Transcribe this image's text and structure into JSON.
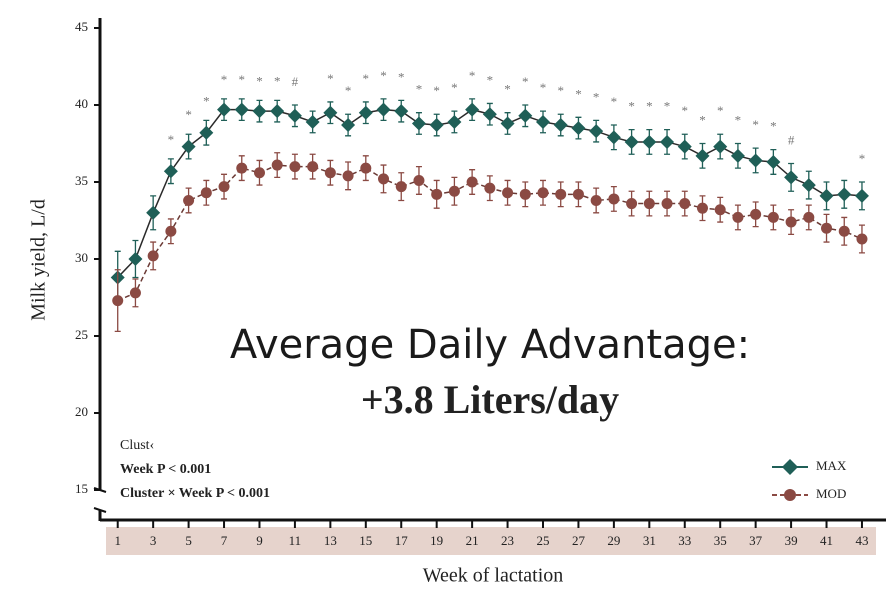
{
  "chart_data": {
    "type": "line",
    "ylabel": "Milk yield, L/d",
    "xlabel": "Week of lactation",
    "headline": "Average Daily Advantage:",
    "subheadline": "+3.8 Liters/day",
    "notes": [
      "Clust‹",
      "Week P < 0.001",
      "Cluster × Week P < 0.001"
    ],
    "xlim": [
      0,
      44.3
    ],
    "ylim": [
      15,
      45
    ],
    "yticks": [
      15,
      20,
      25,
      30,
      35,
      40,
      45
    ],
    "xticks": [
      1,
      3,
      5,
      7,
      9,
      11,
      13,
      15,
      17,
      19,
      21,
      23,
      25,
      27,
      29,
      31,
      33,
      35,
      37,
      39,
      41,
      43
    ],
    "x": [
      1,
      2,
      3,
      4,
      5,
      6,
      7,
      8,
      9,
      10,
      11,
      12,
      13,
      14,
      15,
      16,
      17,
      18,
      19,
      20,
      21,
      22,
      23,
      24,
      25,
      26,
      27,
      28,
      29,
      30,
      31,
      32,
      33,
      34,
      35,
      36,
      37,
      38,
      39,
      40,
      41,
      42,
      43
    ],
    "significance": [
      null,
      null,
      null,
      "*",
      "*",
      "*",
      "*",
      "*",
      "*",
      "*",
      "#",
      null,
      "*",
      "*",
      "*",
      "*",
      "*",
      "*",
      "*",
      "*",
      "*",
      "*",
      "*",
      "*",
      "*",
      "*",
      "*",
      "*",
      "*",
      "*",
      "*",
      "*",
      "*",
      "*",
      "*",
      "*",
      "*",
      "*",
      "#",
      null,
      null,
      null,
      "*"
    ],
    "legend": "lower right",
    "series": [
      {
        "name": "MAX",
        "color": "#1f5f57",
        "marker": "diamond",
        "dashed": false,
        "values": [
          28.8,
          30,
          33,
          35.7,
          37.3,
          38.2,
          39.7,
          39.7,
          39.6,
          39.6,
          39.3,
          38.9,
          39.5,
          38.7,
          39.5,
          39.7,
          39.6,
          38.8,
          38.7,
          38.9,
          39.7,
          39.4,
          38.8,
          39.3,
          38.9,
          38.7,
          38.5,
          38.3,
          37.9,
          37.6,
          37.6,
          37.6,
          37.3,
          36.7,
          37.3,
          36.7,
          36.4,
          36.3,
          35.3,
          34.8,
          34.1,
          34.2,
          34.1
        ],
        "errors": [
          1.7,
          1.2,
          1.1,
          0.8,
          0.8,
          0.8,
          0.7,
          0.7,
          0.7,
          0.7,
          0.7,
          0.7,
          0.7,
          0.7,
          0.7,
          0.7,
          0.7,
          0.7,
          0.7,
          0.7,
          0.7,
          0.7,
          0.7,
          0.7,
          0.7,
          0.7,
          0.7,
          0.7,
          0.8,
          0.8,
          0.8,
          0.8,
          0.8,
          0.8,
          0.8,
          0.8,
          0.8,
          0.8,
          0.9,
          0.9,
          0.9,
          0.9,
          0.9
        ]
      },
      {
        "name": "MOD",
        "color": "#8b4a43",
        "marker": "circle",
        "dashed": true,
        "values": [
          27.3,
          27.8,
          30.2,
          31.8,
          33.8,
          34.3,
          34.7,
          35.9,
          35.6,
          36.1,
          36,
          36,
          35.6,
          35.4,
          35.9,
          35.2,
          34.7,
          35.1,
          34.2,
          34.4,
          35,
          34.6,
          34.3,
          34.2,
          34.3,
          34.2,
          34.2,
          33.8,
          33.9,
          33.6,
          33.6,
          33.6,
          33.6,
          33.3,
          33.2,
          32.7,
          32.9,
          32.7,
          32.4,
          32.7,
          32,
          31.8,
          31.3
        ],
        "errors": [
          2,
          0.9,
          0.9,
          0.8,
          0.8,
          0.8,
          0.8,
          0.8,
          0.8,
          0.8,
          0.8,
          0.8,
          0.8,
          0.9,
          0.8,
          0.9,
          0.9,
          0.9,
          0.9,
          0.9,
          0.8,
          0.8,
          0.8,
          0.8,
          0.8,
          0.8,
          0.8,
          0.8,
          0.8,
          0.8,
          0.8,
          0.8,
          0.8,
          0.8,
          0.8,
          0.8,
          0.8,
          0.8,
          0.8,
          0.8,
          0.9,
          0.9,
          0.9
        ]
      }
    ]
  }
}
